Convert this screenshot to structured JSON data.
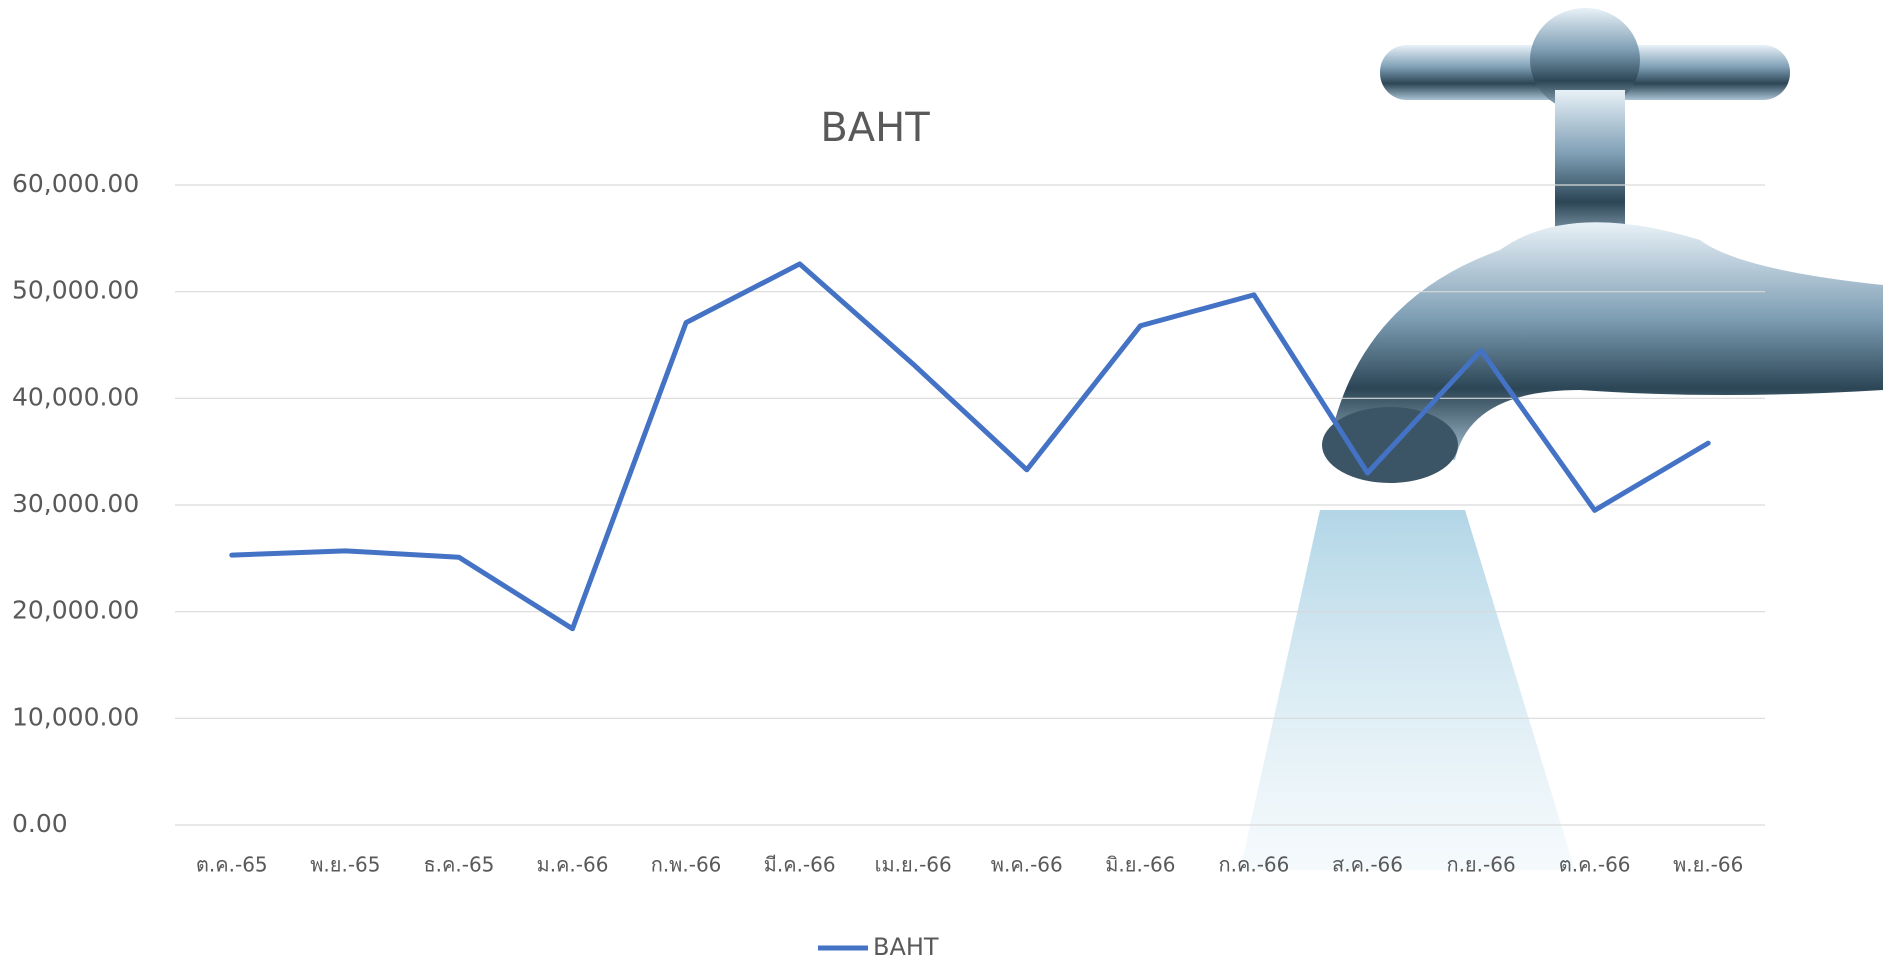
{
  "chart_data": {
    "type": "line",
    "title": "BAHT",
    "categories": [
      "ต.ค.-65",
      "พ.ย.-65",
      "ธ.ค.-65",
      "ม.ค.-66",
      "ก.พ.-66",
      "มี.ค.-66",
      "เม.ย.-66",
      "พ.ค.-66",
      "มิ.ย.-66",
      "ก.ค.-66",
      "ส.ค.-66",
      "ก.ย.-66",
      "ต.ค.-66",
      "พ.ย.-66"
    ],
    "series": [
      {
        "name": "BAHT",
        "color": "#4472c4",
        "values": [
          25300,
          25700,
          25100,
          18400,
          47100,
          52600,
          43200,
          33300,
          46800,
          49700,
          33000,
          44500,
          29500,
          35800
        ]
      }
    ],
    "ylim": [
      0,
      60000
    ],
    "yticks": [
      {
        "value": 0,
        "label": "0.00"
      },
      {
        "value": 10000,
        "label": "10,000.00"
      },
      {
        "value": 20000,
        "label": "20,000.00"
      },
      {
        "value": 30000,
        "label": "30,000.00"
      },
      {
        "value": 40000,
        "label": "40,000.00"
      },
      {
        "value": 50000,
        "label": "50,000.00"
      },
      {
        "value": 60000,
        "label": "60,000.00"
      }
    ],
    "grid": true,
    "legend": "bottom"
  }
}
